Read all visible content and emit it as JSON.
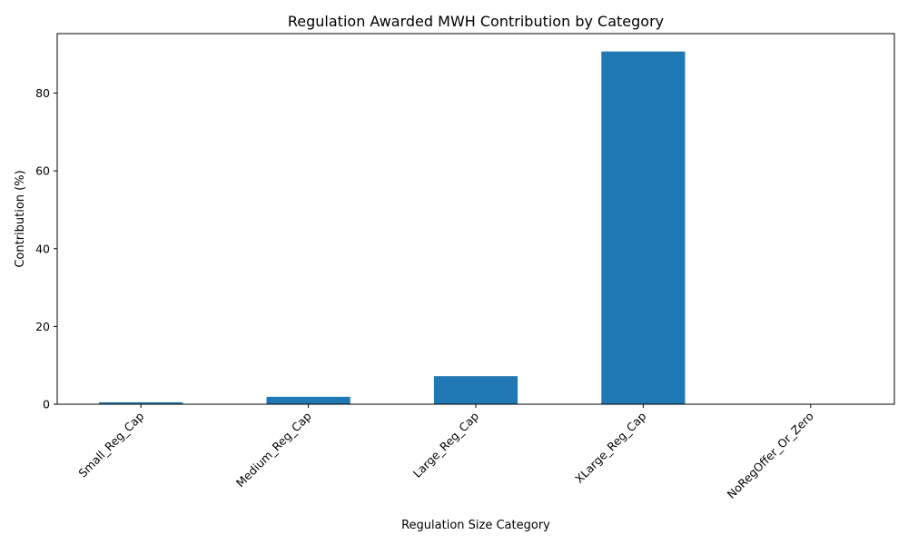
{
  "chart_data": {
    "type": "bar",
    "title": "Regulation Awarded MWH Contribution by Category",
    "xlabel": "Regulation Size Category",
    "ylabel": "Contribution (%)",
    "categories": [
      "Small_Reg_Cap",
      "Medium_Reg_Cap",
      "Large_Reg_Cap",
      "XLarge_Reg_Cap",
      "NoRegOffer_Or_Zero"
    ],
    "values": [
      0.5,
      1.9,
      7.2,
      90.7,
      0.0
    ],
    "ylim": [
      0,
      95.3
    ],
    "yticks": [
      0,
      20,
      40,
      60,
      80
    ],
    "bar_color": "#1f77b4",
    "grid": false,
    "legend": "none"
  }
}
